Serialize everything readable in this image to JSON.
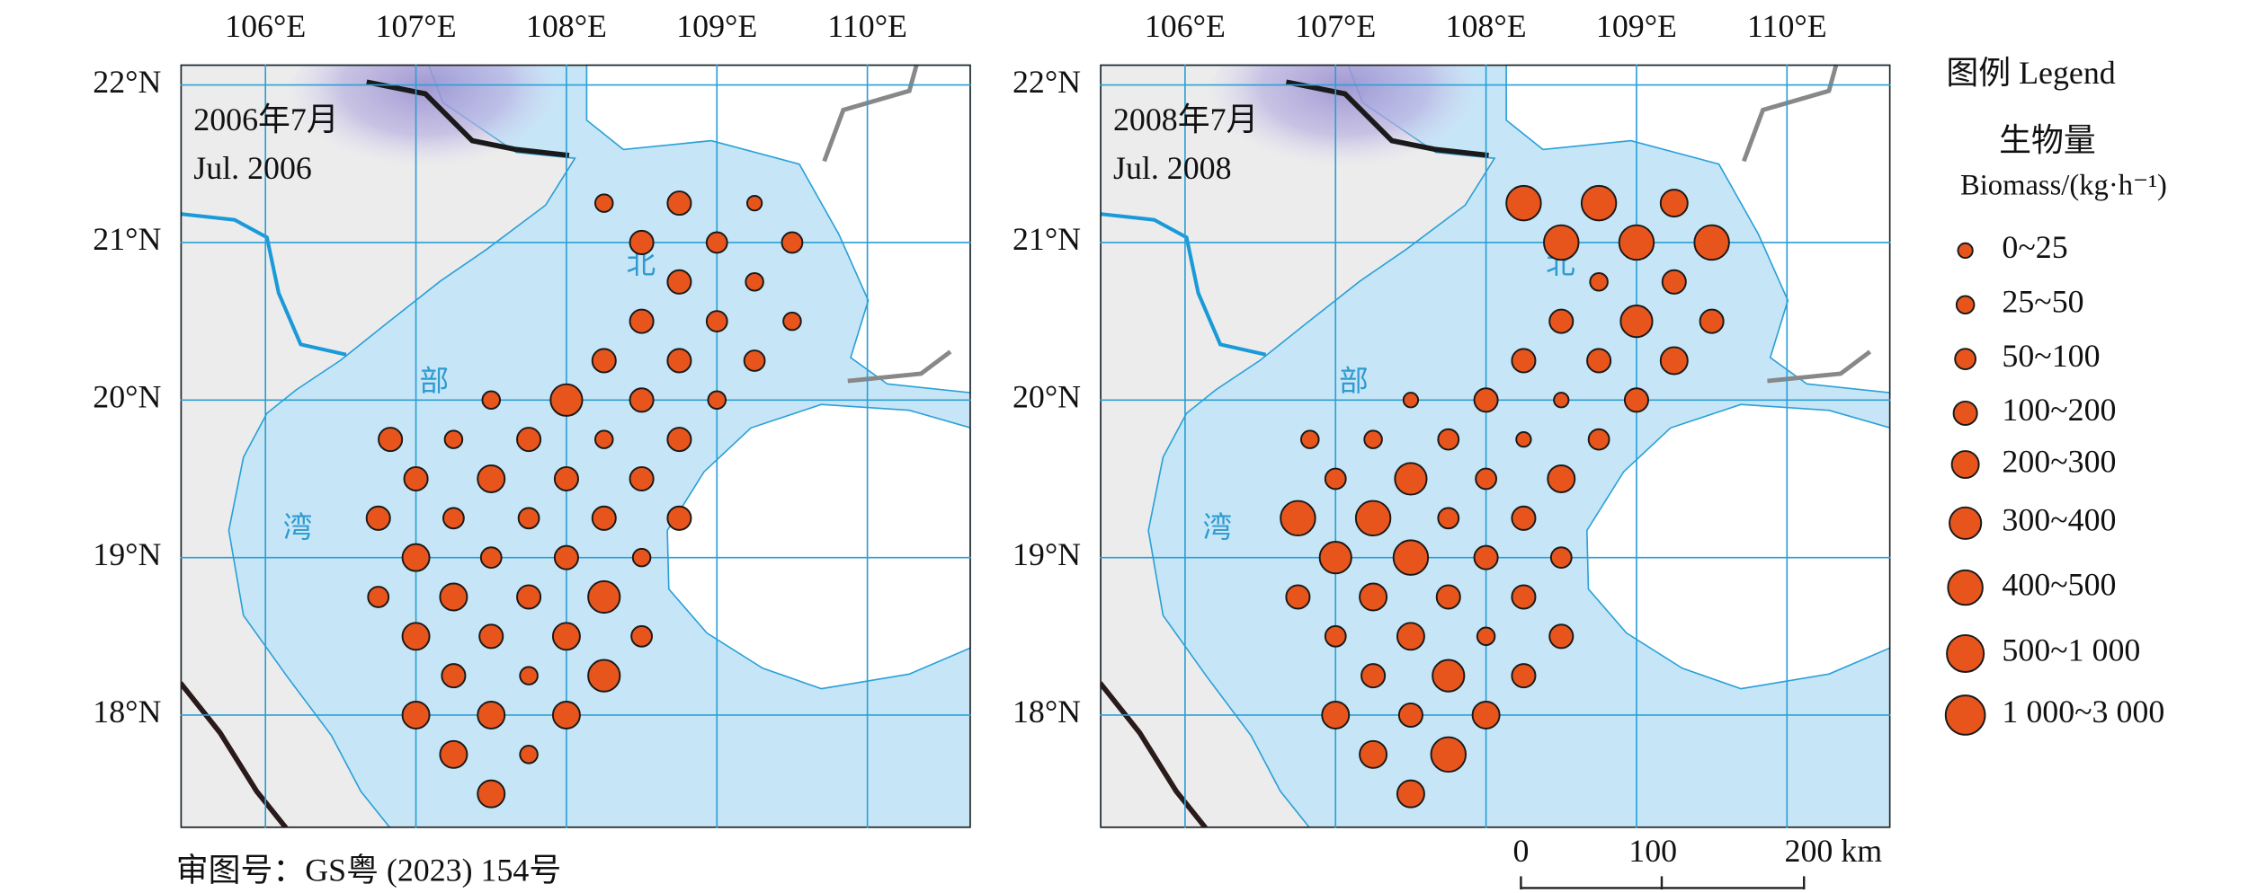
{
  "axes": {
    "lon_labels": [
      "106°E",
      "107°E",
      "108°E",
      "109°E",
      "110°E"
    ],
    "lat_labels": [
      "22°N",
      "21°N",
      "20°N",
      "19°N",
      "18°N"
    ]
  },
  "panels": [
    {
      "title_cn": "2006年7月",
      "title_en": "Jul. 2006",
      "sea_labels": [
        "北",
        "部",
        "湾"
      ],
      "stations": [
        [
          108.25,
          21.25,
          "25~50"
        ],
        [
          108.75,
          21.25,
          "100~200"
        ],
        [
          109.25,
          21.25,
          "0~25"
        ],
        [
          108.5,
          21.0,
          "100~200"
        ],
        [
          109.0,
          21.0,
          "50~100"
        ],
        [
          109.5,
          21.0,
          "50~100"
        ],
        [
          108.75,
          20.75,
          "100~200"
        ],
        [
          109.25,
          20.75,
          "25~50"
        ],
        [
          108.5,
          20.5,
          "100~200"
        ],
        [
          109.0,
          20.5,
          "50~100"
        ],
        [
          109.5,
          20.5,
          "25~50"
        ],
        [
          108.25,
          20.25,
          "100~200"
        ],
        [
          108.75,
          20.25,
          "100~200"
        ],
        [
          109.25,
          20.25,
          "50~100"
        ],
        [
          107.5,
          20.0,
          "25~50"
        ],
        [
          108.0,
          20.0,
          "300~400"
        ],
        [
          108.5,
          20.0,
          "100~200"
        ],
        [
          109.0,
          20.0,
          "25~50"
        ],
        [
          106.83,
          19.75,
          "100~200"
        ],
        [
          107.25,
          19.75,
          "25~50"
        ],
        [
          107.75,
          19.75,
          "100~200"
        ],
        [
          108.25,
          19.75,
          "25~50"
        ],
        [
          108.75,
          19.75,
          "100~200"
        ],
        [
          107.0,
          19.5,
          "100~200"
        ],
        [
          107.5,
          19.5,
          "200~300"
        ],
        [
          108.0,
          19.5,
          "100~200"
        ],
        [
          108.5,
          19.5,
          "100~200"
        ],
        [
          106.75,
          19.25,
          "100~200"
        ],
        [
          107.25,
          19.25,
          "50~100"
        ],
        [
          107.75,
          19.25,
          "50~100"
        ],
        [
          108.25,
          19.25,
          "100~200"
        ],
        [
          108.75,
          19.25,
          "100~200"
        ],
        [
          107.0,
          19.0,
          "200~300"
        ],
        [
          107.5,
          19.0,
          "50~100"
        ],
        [
          108.0,
          19.0,
          "100~200"
        ],
        [
          108.5,
          19.0,
          "25~50"
        ],
        [
          106.75,
          18.75,
          "50~100"
        ],
        [
          107.25,
          18.75,
          "200~300"
        ],
        [
          107.75,
          18.75,
          "100~200"
        ],
        [
          108.25,
          18.75,
          "300~400"
        ],
        [
          107.0,
          18.5,
          "200~300"
        ],
        [
          107.5,
          18.5,
          "100~200"
        ],
        [
          108.0,
          18.5,
          "200~300"
        ],
        [
          108.5,
          18.5,
          "50~100"
        ],
        [
          107.25,
          18.25,
          "100~200"
        ],
        [
          107.75,
          18.25,
          "25~50"
        ],
        [
          108.25,
          18.25,
          "300~400"
        ],
        [
          107.0,
          18.0,
          "200~300"
        ],
        [
          107.5,
          18.0,
          "200~300"
        ],
        [
          108.0,
          18.0,
          "200~300"
        ],
        [
          107.25,
          17.75,
          "200~300"
        ],
        [
          107.75,
          17.75,
          "25~50"
        ],
        [
          107.5,
          17.5,
          "200~300"
        ]
      ]
    },
    {
      "title_cn": "2008年7月",
      "title_en": "Jul. 2008",
      "sea_labels": [
        "北",
        "部",
        "湾"
      ],
      "stations": [
        [
          108.25,
          21.25,
          "400~500"
        ],
        [
          108.75,
          21.25,
          "400~500"
        ],
        [
          109.25,
          21.25,
          "200~300"
        ],
        [
          108.5,
          21.0,
          "400~500"
        ],
        [
          109.0,
          21.0,
          "400~500"
        ],
        [
          109.5,
          21.0,
          "400~500"
        ],
        [
          108.75,
          20.75,
          "25~50"
        ],
        [
          109.25,
          20.75,
          "100~200"
        ],
        [
          108.5,
          20.5,
          "100~200"
        ],
        [
          109.0,
          20.5,
          "300~400"
        ],
        [
          109.5,
          20.5,
          "100~200"
        ],
        [
          108.25,
          20.25,
          "100~200"
        ],
        [
          108.75,
          20.25,
          "100~200"
        ],
        [
          109.25,
          20.25,
          "200~300"
        ],
        [
          107.5,
          20.0,
          "0~25"
        ],
        [
          108.0,
          20.0,
          "100~200"
        ],
        [
          108.5,
          20.0,
          "0~25"
        ],
        [
          109.0,
          20.0,
          "100~200"
        ],
        [
          106.83,
          19.75,
          "25~50"
        ],
        [
          107.25,
          19.75,
          "25~50"
        ],
        [
          107.75,
          19.75,
          "50~100"
        ],
        [
          108.25,
          19.75,
          "0~25"
        ],
        [
          108.75,
          19.75,
          "50~100"
        ],
        [
          107.0,
          19.5,
          "50~100"
        ],
        [
          107.5,
          19.5,
          "300~400"
        ],
        [
          108.0,
          19.5,
          "50~100"
        ],
        [
          108.5,
          19.5,
          "200~300"
        ],
        [
          106.75,
          19.25,
          "400~500"
        ],
        [
          107.25,
          19.25,
          "400~500"
        ],
        [
          107.75,
          19.25,
          "50~100"
        ],
        [
          108.25,
          19.25,
          "100~200"
        ],
        [
          107.0,
          19.0,
          "300~400"
        ],
        [
          107.5,
          19.0,
          "400~500"
        ],
        [
          108.0,
          19.0,
          "100~200"
        ],
        [
          108.5,
          19.0,
          "50~100"
        ],
        [
          106.75,
          18.75,
          "100~200"
        ],
        [
          107.25,
          18.75,
          "200~300"
        ],
        [
          107.75,
          18.75,
          "100~200"
        ],
        [
          108.25,
          18.75,
          "100~200"
        ],
        [
          107.0,
          18.5,
          "50~100"
        ],
        [
          107.5,
          18.5,
          "200~300"
        ],
        [
          108.0,
          18.5,
          "25~50"
        ],
        [
          108.5,
          18.5,
          "100~200"
        ],
        [
          107.25,
          18.25,
          "100~200"
        ],
        [
          107.75,
          18.25,
          "300~400"
        ],
        [
          108.25,
          18.25,
          "100~200"
        ],
        [
          107.0,
          18.0,
          "200~300"
        ],
        [
          107.5,
          18.0,
          "100~200"
        ],
        [
          108.0,
          18.0,
          "200~300"
        ],
        [
          107.25,
          17.75,
          "200~300"
        ],
        [
          107.75,
          17.75,
          "400~500"
        ],
        [
          107.5,
          17.5,
          "200~300"
        ]
      ]
    }
  ],
  "legend": {
    "title": "图例 Legend",
    "quantity": "生物量",
    "unit": "Biomass/(kg·h⁻¹)",
    "classes": [
      "0~25",
      "25~50",
      "50~100",
      "100~200",
      "200~300",
      "300~400",
      "400~500",
      "500~1 000",
      "1 000~3 000"
    ]
  },
  "approval": "审图号：GS粤 (2023) 154号",
  "scale_bar": {
    "labels": [
      "0",
      "100",
      "200 km"
    ]
  }
}
